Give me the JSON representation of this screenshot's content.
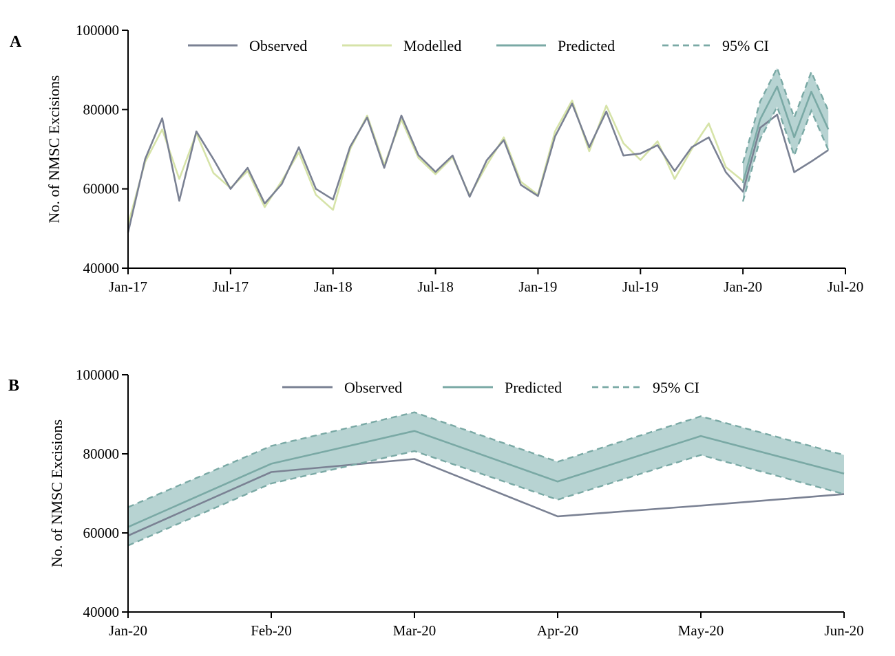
{
  "colors": {
    "observed": "#7a8193",
    "modelled": "#d6e3a8",
    "predicted": "#7aa9a5",
    "ci_band": "#b7d3d2",
    "axis": "#000000"
  },
  "chart_data": [
    {
      "panel": "A",
      "type": "line",
      "ylabel": "No. of NMSC Excisions",
      "xlabel": "",
      "ylim": [
        40000,
        100000
      ],
      "yticks": [
        40000,
        60000,
        80000,
        100000
      ],
      "ytick_labels": [
        "40000",
        "60000",
        "80000",
        "100000"
      ],
      "xlim": [
        0,
        42
      ],
      "xticks": [
        0,
        6,
        12,
        18,
        24,
        30,
        36,
        42
      ],
      "xtick_labels": [
        "Jan-17",
        "Jul-17",
        "Jan-18",
        "Jul-18",
        "Jan-19",
        "Jul-19",
        "Jan-20",
        "Jul-20"
      ],
      "legend": [
        "Observed",
        "Modelled",
        "Predicted",
        "95% CI"
      ],
      "legend_position": "top",
      "series": [
        {
          "name": "Observed",
          "x": [
            0,
            1,
            2,
            3,
            4,
            5,
            6,
            7,
            8,
            9,
            10,
            11,
            12,
            13,
            14,
            15,
            16,
            17,
            18,
            19,
            20,
            21,
            22,
            23,
            24,
            25,
            26,
            27,
            28,
            29,
            30,
            31,
            32,
            33,
            34,
            35,
            36,
            37,
            38,
            39,
            40,
            41
          ],
          "values": [
            49000,
            67500,
            77800,
            57000,
            74500,
            67500,
            60000,
            65300,
            56300,
            61200,
            70500,
            60000,
            57300,
            70600,
            78000,
            65300,
            78500,
            68500,
            64300,
            68400,
            58000,
            67200,
            72300,
            61000,
            58200,
            73200,
            81500,
            70500,
            79500,
            68400,
            68900,
            71000,
            64500,
            70500,
            73000,
            64200,
            59300,
            75400,
            78700,
            64200,
            66900,
            69800
          ]
        },
        {
          "name": "Modelled",
          "x": [
            0,
            1,
            2,
            3,
            4,
            5,
            6,
            7,
            8,
            9,
            10,
            11,
            12,
            13,
            14,
            15,
            16,
            17,
            18,
            19,
            20,
            21,
            22,
            23,
            24,
            25,
            26,
            27,
            28,
            29,
            30,
            31,
            32,
            33,
            34,
            35,
            36
          ],
          "values": [
            51000,
            66800,
            75000,
            62500,
            74000,
            64000,
            60200,
            64500,
            55400,
            62000,
            69200,
            58500,
            54700,
            70000,
            78500,
            66000,
            77500,
            67800,
            63700,
            68000,
            58300,
            66000,
            73000,
            61800,
            58500,
            74500,
            82300,
            69500,
            81000,
            71500,
            67300,
            72000,
            62500,
            70000,
            76500,
            65500,
            62000
          ]
        },
        {
          "name": "Predicted",
          "x": [
            36,
            37,
            38,
            39,
            40,
            41
          ],
          "values": [
            61500,
            77500,
            85800,
            73000,
            84500,
            75000
          ]
        },
        {
          "name": "95% CI",
          "x": [
            36,
            37,
            38,
            39,
            40,
            41
          ],
          "upper": [
            66500,
            82000,
            90500,
            78000,
            89500,
            79700
          ],
          "lower": [
            56800,
            72500,
            80700,
            68400,
            79700,
            69800
          ]
        }
      ]
    },
    {
      "panel": "B",
      "type": "line",
      "ylabel": "No. of NMSC Excisions",
      "xlabel": "",
      "ylim": [
        40000,
        100000
      ],
      "yticks": [
        40000,
        60000,
        80000,
        100000
      ],
      "ytick_labels": [
        "40000",
        "60000",
        "80000",
        "100000"
      ],
      "xlim": [
        0,
        5
      ],
      "xticks": [
        0,
        1,
        2,
        3,
        4,
        5
      ],
      "categories": [
        "Jan-20",
        "Feb-20",
        "Mar-20",
        "Apr-20",
        "May-20",
        "Jun-20"
      ],
      "xtick_labels": [
        "Jan-20",
        "Feb-20",
        "Mar-20",
        "Apr-20",
        "May-20",
        "Jun-20"
      ],
      "legend": [
        "Observed",
        "Predicted",
        "95% CI"
      ],
      "legend_position": "top",
      "series": [
        {
          "name": "Observed",
          "x": [
            0,
            1,
            2,
            3,
            4,
            5
          ],
          "values": [
            59300,
            75400,
            78700,
            64200,
            66900,
            69800
          ]
        },
        {
          "name": "Predicted",
          "x": [
            0,
            1,
            2,
            3,
            4,
            5
          ],
          "values": [
            61500,
            77500,
            85800,
            73000,
            84500,
            75000
          ]
        },
        {
          "name": "95% CI",
          "x": [
            0,
            1,
            2,
            3,
            4,
            5
          ],
          "upper": [
            66500,
            82000,
            90500,
            78000,
            89500,
            79700
          ],
          "lower": [
            56800,
            72500,
            80700,
            68400,
            79700,
            69800
          ]
        }
      ]
    }
  ]
}
